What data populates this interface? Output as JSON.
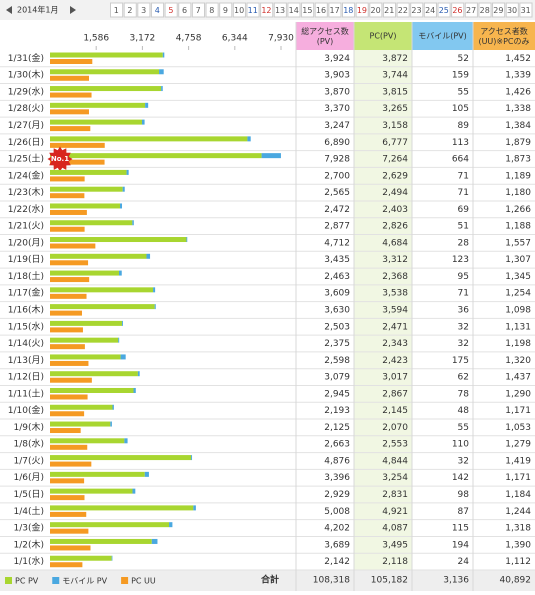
{
  "nav": {
    "month": "2014年1月",
    "days": [
      1,
      2,
      3,
      4,
      5,
      6,
      7,
      8,
      9,
      10,
      11,
      12,
      13,
      14,
      15,
      16,
      17,
      18,
      19,
      20,
      21,
      22,
      23,
      24,
      25,
      26,
      27,
      28,
      29,
      30,
      31
    ],
    "day_colors": [
      "#555",
      "#555",
      "#555",
      "#2a5cb0",
      "#d0312d",
      "#555",
      "#555",
      "#555",
      "#555",
      "#555",
      "#2a5cb0",
      "#d0312d",
      "#555",
      "#555",
      "#555",
      "#555",
      "#555",
      "#2a5cb0",
      "#d0312d",
      "#555",
      "#555",
      "#555",
      "#555",
      "#555",
      "#2a5cb0",
      "#d0312d",
      "#555",
      "#555",
      "#555",
      "#555",
      "#555"
    ]
  },
  "chart_data": {
    "type": "bar",
    "categories": [
      "1/31(金)",
      "1/30(木)",
      "1/29(水)",
      "1/28(火)",
      "1/27(月)",
      "1/26(日)",
      "1/25(土)",
      "1/24(金)",
      "1/23(木)",
      "1/22(水)",
      "1/21(火)",
      "1/20(月)",
      "1/19(日)",
      "1/18(土)",
      "1/17(金)",
      "1/16(木)",
      "1/15(水)",
      "1/14(火)",
      "1/13(月)",
      "1/12(日)",
      "1/11(土)",
      "1/10(金)",
      "1/9(木)",
      "1/8(水)",
      "1/7(火)",
      "1/6(月)",
      "1/5(日)",
      "1/4(土)",
      "1/3(金)",
      "1/2(木)",
      "1/1(水)"
    ],
    "xlim": [
      0,
      7930
    ],
    "xticks": [
      {
        "value": 1586,
        "label": "1,586"
      },
      {
        "value": 3172,
        "label": "3,172"
      },
      {
        "value": 4758,
        "label": "4,758"
      },
      {
        "value": 6344,
        "label": "6,344"
      },
      {
        "value": 7930,
        "label": "7,930"
      }
    ],
    "badge": "No.1",
    "columns": [
      "総アクセス数(PV)",
      "PC(PV)",
      "モバイル(PV)",
      "アクセス者数(UU)※PCのみ"
    ],
    "totals": {
      "values": [
        3924,
        3903,
        3870,
        3370,
        3247,
        6890,
        7928,
        2700,
        2565,
        2472,
        2877,
        4712,
        3435,
        2463,
        3609,
        3630,
        2503,
        2375,
        2598,
        3079,
        2945,
        2193,
        2125,
        2663,
        4876,
        3396,
        2929,
        5008,
        4202,
        3689,
        2142
      ],
      "value_labels": [
        "3,924",
        "3,903",
        "3,870",
        "3,370",
        "3,247",
        "6,890",
        "7,928",
        "2,700",
        "2,565",
        "2,472",
        "2,877",
        "4,712",
        "3,435",
        "2,463",
        "3,609",
        "3,630",
        "2,503",
        "2,375",
        "2,598",
        "3,079",
        "2,945",
        "2,193",
        "2,125",
        "2,663",
        "4,876",
        "3,396",
        "2,929",
        "5,008",
        "4,202",
        "3,689",
        "2,142"
      ]
    },
    "series": [
      {
        "name": "PC PV",
        "color": "#a8d630",
        "values": [
          3872,
          3744,
          3815,
          3265,
          3158,
          6777,
          7264,
          2629,
          2494,
          2403,
          2826,
          4684,
          3312,
          2368,
          3538,
          3594,
          2471,
          2343,
          2423,
          3017,
          2867,
          2145,
          2070,
          2553,
          4844,
          3254,
          2831,
          4921,
          4087,
          3495,
          2118
        ],
        "value_labels": [
          "3,872",
          "3,744",
          "3,815",
          "3,265",
          "3,158",
          "6,777",
          "7,264",
          "2,629",
          "2,494",
          "2,403",
          "2,826",
          "4,684",
          "3,312",
          "2,368",
          "3,538",
          "3,594",
          "2,471",
          "2,343",
          "2,423",
          "3,017",
          "2,867",
          "2,145",
          "2,070",
          "2,553",
          "4,844",
          "3,254",
          "2,831",
          "4,921",
          "4,087",
          "3,495",
          "2,118"
        ]
      },
      {
        "name": "モバイル PV",
        "color": "#4aa8e0",
        "values": [
          52,
          159,
          55,
          105,
          89,
          113,
          664,
          71,
          71,
          69,
          51,
          28,
          123,
          95,
          71,
          36,
          32,
          32,
          175,
          62,
          78,
          48,
          55,
          110,
          32,
          142,
          98,
          87,
          115,
          194,
          24
        ]
      },
      {
        "name": "PC UU",
        "color": "#f59a23",
        "values": [
          1452,
          1339,
          1426,
          1338,
          1384,
          1879,
          1873,
          1189,
          1180,
          1266,
          1188,
          1557,
          1307,
          1345,
          1254,
          1098,
          1131,
          1198,
          1320,
          1437,
          1290,
          1171,
          1053,
          1279,
          1419,
          1171,
          1184,
          1244,
          1318,
          1390,
          1112
        ],
        "value_labels": [
          "1,452",
          "1,339",
          "1,426",
          "1,338",
          "1,384",
          "1,879",
          "1,873",
          "1,189",
          "1,180",
          "1,266",
          "1,188",
          "1,557",
          "1,307",
          "1,345",
          "1,254",
          "1,098",
          "1,131",
          "1,198",
          "1,320",
          "1,437",
          "1,290",
          "1,171",
          "1,053",
          "1,279",
          "1,419",
          "1,171",
          "1,184",
          "1,244",
          "1,318",
          "1,390",
          "1,112"
        ]
      }
    ],
    "sum_label": "合計",
    "sums": [
      {
        "value": 108318,
        "label": "108,318"
      },
      {
        "value": 105182,
        "label": "105,182"
      },
      {
        "value": 3136,
        "label": "3,136"
      },
      {
        "value": 40892,
        "label": "40,892"
      }
    ]
  }
}
